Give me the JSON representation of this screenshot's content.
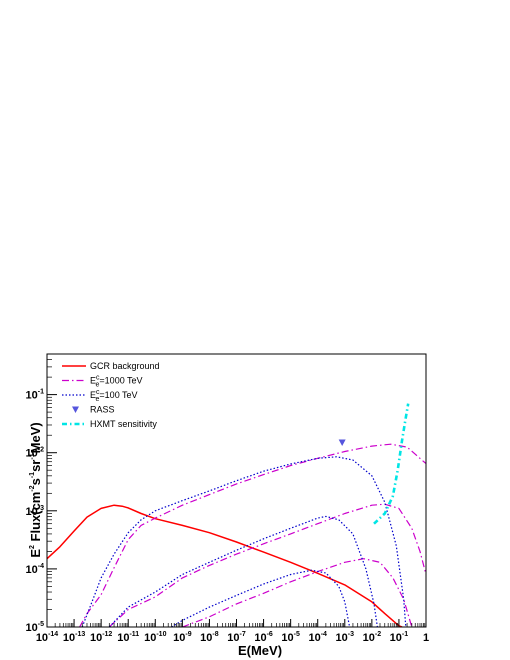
{
  "chart_data": {
    "type": "line",
    "xlabel": "E(MeV)",
    "ylabel_parts": {
      "a": "E",
      "a_sup": "2",
      "b": " Flux(cm",
      "b_sup": "-2",
      "c": "s",
      "c_sup": "-1",
      "d": "sr",
      "d_sup": "-1",
      "e": "MeV)"
    },
    "x_scale": "log",
    "y_scale": "log",
    "xlim": [
      1e-14,
      1
    ],
    "ylim": [
      1e-05,
      0.5
    ],
    "x_ticks": [
      {
        "v": 1e-14,
        "base": "10",
        "exp": "-14"
      },
      {
        "v": 1e-13,
        "base": "10",
        "exp": "-13"
      },
      {
        "v": 1e-12,
        "base": "10",
        "exp": "-12"
      },
      {
        "v": 1e-11,
        "base": "10",
        "exp": "-11"
      },
      {
        "v": 1e-10,
        "base": "10",
        "exp": "-10"
      },
      {
        "v": 1e-09,
        "base": "10",
        "exp": "-9"
      },
      {
        "v": 1e-08,
        "base": "10",
        "exp": "-8"
      },
      {
        "v": 1e-07,
        "base": "10",
        "exp": "-7"
      },
      {
        "v": 1e-06,
        "base": "10",
        "exp": "-6"
      },
      {
        "v": 1e-05,
        "base": "10",
        "exp": "-5"
      },
      {
        "v": 0.0001,
        "base": "10",
        "exp": "-4"
      },
      {
        "v": 0.001,
        "base": "10",
        "exp": "-3"
      },
      {
        "v": 0.01,
        "base": "10",
        "exp": "-2"
      },
      {
        "v": 0.1,
        "base": "10",
        "exp": "-1"
      },
      {
        "v": 1,
        "base": "1",
        "exp": ""
      }
    ],
    "y_ticks": [
      {
        "v": 1e-05,
        "base": "10",
        "exp": "-5"
      },
      {
        "v": 0.0001,
        "base": "10",
        "exp": "-4"
      },
      {
        "v": 0.001,
        "base": "10",
        "exp": "-3"
      },
      {
        "v": 0.01,
        "base": "10",
        "exp": "-2"
      },
      {
        "v": 0.1,
        "base": "10",
        "exp": "-1"
      }
    ],
    "legend": {
      "placement": "top-left",
      "entries": [
        {
          "label": "GCR background",
          "style": "solid",
          "color": "#ff0000"
        },
        {
          "label_main": "E",
          "label_sup": "c",
          "label_sub": "e",
          "label_rest": "=1000 TeV",
          "style": "dashdot",
          "color": "#cc00cc"
        },
        {
          "label_main": "E",
          "label_sup": "c",
          "label_sub": "e",
          "label_rest": "=100 TeV",
          "style": "dotted",
          "color": "#0000cc"
        },
        {
          "label": "RASS",
          "style": "marker",
          "color": "#5555dd"
        },
        {
          "label": "HXMT sensitivity",
          "style": "dashdot-thick",
          "color": "#00e5e5"
        }
      ]
    },
    "series": [
      {
        "name": "GCR background",
        "color": "#ff0000",
        "style": "solid",
        "points": [
          [
            1e-14,
            0.00015
          ],
          [
            3e-14,
            0.00024
          ],
          [
            1e-13,
            0.00045
          ],
          [
            3e-13,
            0.00078
          ],
          [
            1e-12,
            0.0011
          ],
          [
            3e-12,
            0.00125
          ],
          [
            6e-12,
            0.0012
          ],
          [
            1e-11,
            0.00112
          ],
          [
            3e-11,
            0.0009
          ],
          [
            1e-10,
            0.00073
          ],
          [
            1e-09,
            0.00056
          ],
          [
            1e-08,
            0.00042
          ],
          [
            1e-07,
            0.00029
          ],
          [
            1e-06,
            0.000195
          ],
          [
            1e-05,
            0.00013
          ],
          [
            0.0001,
            8.4e-05
          ],
          [
            0.001,
            5.3e-05
          ],
          [
            0.01,
            2.7e-05
          ],
          [
            0.03,
            1.7e-05
          ],
          [
            0.1,
            1.05e-05
          ],
          [
            0.13,
            1e-05
          ]
        ]
      },
      {
        "name": "E_e^c=1000 TeV (upper)",
        "color": "#cc00cc",
        "style": "dashdot",
        "points": [
          [
            1.6e-13,
            1e-05
          ],
          [
            3e-13,
            1.7e-05
          ],
          [
            1e-12,
            3.6e-05
          ],
          [
            3e-12,
            0.000105
          ],
          [
            1e-11,
            0.00032
          ],
          [
            3e-11,
            0.00056
          ],
          [
            1e-10,
            0.00075
          ],
          [
            1e-09,
            0.00125
          ],
          [
            1e-08,
            0.0019
          ],
          [
            1e-07,
            0.0029
          ],
          [
            1e-06,
            0.0042
          ],
          [
            1e-05,
            0.006
          ],
          [
            0.0001,
            0.008
          ],
          [
            0.001,
            0.0105
          ],
          [
            0.01,
            0.013
          ],
          [
            0.05,
            0.014
          ],
          [
            0.2,
            0.0125
          ],
          [
            1,
            0.0065
          ]
        ]
      },
      {
        "name": "E_e^c=1000 TeV (middle)",
        "color": "#cc00cc",
        "style": "dashdot",
        "points": [
          [
            2e-12,
            1e-05
          ],
          [
            1e-11,
            2e-05
          ],
          [
            1e-10,
            3.3e-05
          ],
          [
            1e-09,
            7e-05
          ],
          [
            1e-08,
            0.000115
          ],
          [
            1e-07,
            0.00018
          ],
          [
            1e-06,
            0.00027
          ],
          [
            1e-05,
            0.0004
          ],
          [
            0.0001,
            0.0006
          ],
          [
            0.001,
            0.0009
          ],
          [
            0.01,
            0.00125
          ],
          [
            0.03,
            0.0013
          ],
          [
            0.1,
            0.0011
          ],
          [
            0.3,
            0.0005
          ],
          [
            0.6,
            0.0002
          ],
          [
            1,
            8e-05
          ]
        ]
      },
      {
        "name": "E_e^c=1000 TeV (lower)",
        "color": "#cc00cc",
        "style": "dashdot",
        "points": [
          [
            1e-09,
            1e-05
          ],
          [
            1e-08,
            1.5e-05
          ],
          [
            1e-07,
            2.5e-05
          ],
          [
            1e-06,
            3.8e-05
          ],
          [
            1e-05,
            6e-05
          ],
          [
            0.0001,
            9e-05
          ],
          [
            0.001,
            0.00013
          ],
          [
            0.005,
            0.00015
          ],
          [
            0.02,
            0.00013
          ],
          [
            0.06,
            7e-05
          ],
          [
            0.15,
            3e-05
          ],
          [
            0.3,
            1e-05
          ]
        ]
      },
      {
        "name": "E_e^c=100 TeV (upper)",
        "color": "#0000cc",
        "style": "dotted",
        "points": [
          [
            2e-13,
            1e-05
          ],
          [
            5e-13,
            3e-05
          ],
          [
            1e-12,
            7e-05
          ],
          [
            3e-12,
            0.00018
          ],
          [
            1e-11,
            0.00042
          ],
          [
            3e-11,
            0.0007
          ],
          [
            1e-10,
            0.001
          ],
          [
            1e-09,
            0.0015
          ],
          [
            1e-08,
            0.0022
          ],
          [
            1e-07,
            0.0033
          ],
          [
            1e-06,
            0.0048
          ],
          [
            1e-05,
            0.0064
          ],
          [
            0.0001,
            0.008
          ],
          [
            0.0005,
            0.0085
          ],
          [
            0.002,
            0.0075
          ],
          [
            0.01,
            0.004
          ],
          [
            0.03,
            0.0014
          ],
          [
            0.08,
            0.00025
          ],
          [
            0.15,
            3e-05
          ],
          [
            0.18,
            1e-05
          ]
        ]
      },
      {
        "name": "E_e^c=100 TeV (middle)",
        "color": "#0000cc",
        "style": "dotted",
        "points": [
          [
            2e-12,
            1e-05
          ],
          [
            1e-11,
            2.2e-05
          ],
          [
            1e-10,
            4e-05
          ],
          [
            1e-09,
            8e-05
          ],
          [
            1e-08,
            0.00013
          ],
          [
            1e-07,
            0.00021
          ],
          [
            1e-06,
            0.00033
          ],
          [
            1e-05,
            0.0005
          ],
          [
            0.0001,
            0.00075
          ],
          [
            0.0002,
            0.0008
          ],
          [
            0.0006,
            0.0007
          ],
          [
            0.002,
            0.0004
          ],
          [
            0.006,
            0.0001
          ],
          [
            0.012,
            2.5e-05
          ],
          [
            0.016,
            1e-05
          ]
        ]
      },
      {
        "name": "E_e^c=100 TeV (lower)",
        "color": "#0000cc",
        "style": "dotted",
        "points": [
          [
            4e-10,
            1e-05
          ],
          [
            1e-09,
            1.3e-05
          ],
          [
            1e-08,
            2.2e-05
          ],
          [
            1e-07,
            3.5e-05
          ],
          [
            1e-06,
            5.5e-05
          ],
          [
            1e-05,
            8e-05
          ],
          [
            6e-05,
            9.5e-05
          ],
          [
            0.0002,
            8.5e-05
          ],
          [
            0.0006,
            5e-05
          ],
          [
            0.001,
            2.7e-05
          ],
          [
            0.0015,
            1e-05
          ]
        ]
      },
      {
        "name": "E_e^c=100 TeV (right)",
        "color": "#0000cc",
        "style": "dotted",
        "points": [
          [
            0.9,
            1e-05
          ],
          [
            1,
            1e-05
          ]
        ]
      },
      {
        "name": "HXMT sensitivity",
        "color": "#00e5e5",
        "style": "dashdot-thick",
        "points": [
          [
            0.012,
            0.0006
          ],
          [
            0.03,
            0.0009
          ],
          [
            0.06,
            0.0018
          ],
          [
            0.09,
            0.005
          ],
          [
            0.13,
            0.016
          ],
          [
            0.17,
            0.035
          ],
          [
            0.22,
            0.07
          ]
        ]
      }
    ],
    "markers": [
      {
        "name": "RASS",
        "x": 0.0008,
        "y": 0.015,
        "color": "#5555dd",
        "shape": "triangle-down"
      }
    ]
  }
}
